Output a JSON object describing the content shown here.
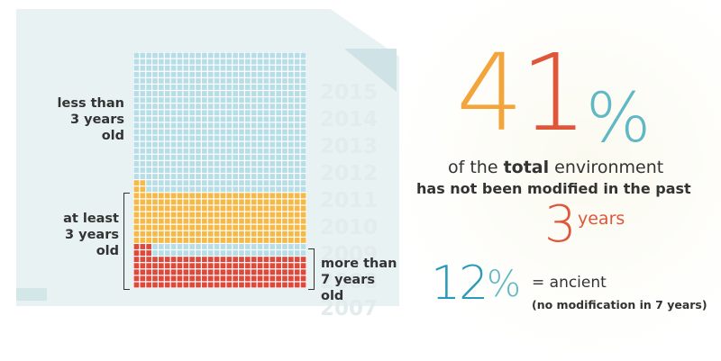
{
  "years": [
    "2015",
    "2014",
    "2013",
    "2012",
    "2011",
    "2010",
    "2009",
    "2008",
    "2007"
  ],
  "labels": {
    "less_than": "less than",
    "three_years": "3 years",
    "old": "old",
    "at_least": "at least",
    "more_than": "more than",
    "seven_years": "7 years"
  },
  "headline": {
    "digit4": "4",
    "digit1": "1",
    "percent": "%",
    "line1_pre": "of the ",
    "line1_bold": "total",
    "line1_post": " environment",
    "line2": "has not been modified in the past",
    "num3": "3",
    "years": "years"
  },
  "ancient": {
    "digit1": "1",
    "digit2": "2",
    "percent": "%",
    "text": "= ancient",
    "note": "(no modification in 7 years)"
  },
  "grid_data": {
    "cols": 28,
    "rows": 37,
    "blue_rows": 22,
    "partial_orange_cells": 2,
    "orange_rows": 8,
    "partial_red_cells": 3,
    "red_rows": 5,
    "colors": {
      "blue": "#b7dde6",
      "orange": "#f5b947",
      "red": "#dd4a3c",
      "gap": "#ffffff"
    }
  },
  "colors": {
    "orange": "#f3a43a",
    "red": "#e0563a",
    "teal": "#5fb8c4",
    "blue": "#2a9ab8",
    "text": "#333333"
  }
}
